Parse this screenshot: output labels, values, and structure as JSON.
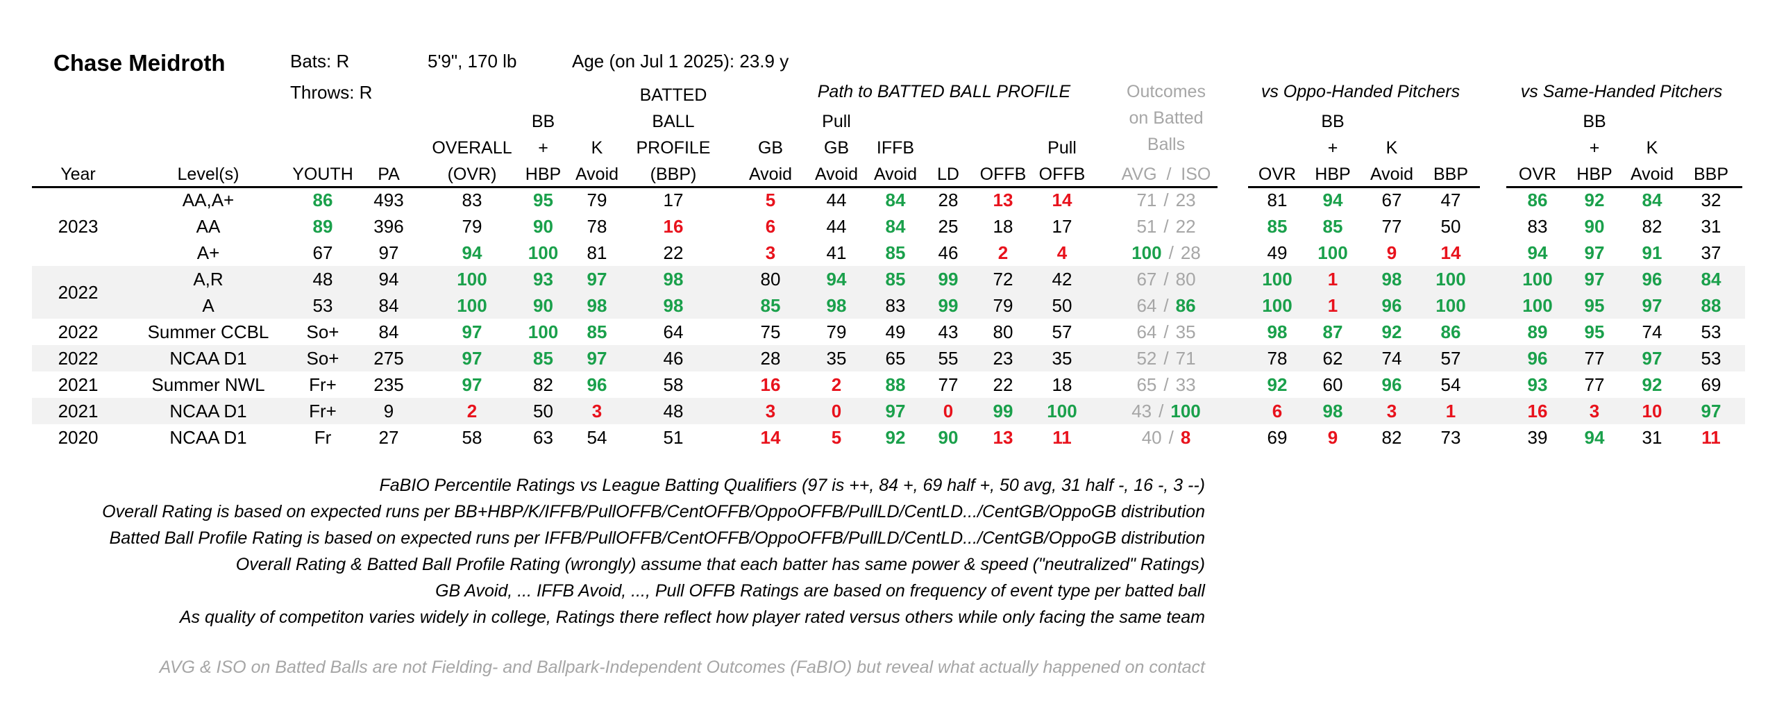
{
  "player": {
    "name": "Chase Meidroth",
    "bats": "Bats: R",
    "throws": "Throws: R",
    "size": "5'9\", 170 lb",
    "age": "Age (on Jul 1 2025): 23.9 y"
  },
  "group_headers": {
    "path": "Path to BATTED BALL PROFILE",
    "outcomes": [
      "Outcomes",
      "on Batted",
      "Balls"
    ],
    "oppo": "vs Oppo-Handed Pitchers",
    "same": "vs Same-Handed Pitchers"
  },
  "col_headers": {
    "year": "Year",
    "level": "Level(s)",
    "youth": "YOUTH",
    "pa": "PA",
    "ovr": [
      "OVERALL",
      "(OVR)"
    ],
    "bbhbp": [
      "BB",
      "+",
      "HBP"
    ],
    "kavoid": [
      "K",
      "Avoid"
    ],
    "bbp": [
      "BATTED",
      "BALL",
      "PROFILE",
      "(BBP)"
    ],
    "gbavoid": [
      "GB",
      "Avoid"
    ],
    "pullgb": [
      "Pull",
      "GB",
      "Avoid"
    ],
    "iffb": [
      "IFFB",
      "Avoid"
    ],
    "ld": "LD",
    "offb": "OFFB",
    "pulloffb": [
      "Pull",
      "OFFB"
    ],
    "avgiso": "AVG  /  ISO",
    "split_ovr": "OVR",
    "split_bb": [
      "BB",
      "+",
      "HBP"
    ],
    "split_k": [
      "K",
      "Avoid"
    ],
    "split_bbp": "BBP"
  },
  "rows": [
    {
      "year": "",
      "level": "AA,A+",
      "youth": "86",
      "pa": "493",
      "ovr": "83",
      "bb": "95",
      "k": "79",
      "bbp": "17",
      "gb": "5",
      "pgb": "44",
      "iffb": "84",
      "ld": "28",
      "offb": "13",
      "poffb": "14",
      "avg": "71",
      "iso": "23",
      "o_ovr": "81",
      "o_bb": "94",
      "o_k": "67",
      "o_bbp": "47",
      "s_ovr": "86",
      "s_bb": "92",
      "s_k": "84",
      "s_bbp": "32"
    },
    {
      "year": "2023",
      "level": "AA",
      "youth": "89",
      "pa": "396",
      "ovr": "79",
      "bb": "90",
      "k": "78",
      "bbp": "16",
      "gb": "6",
      "pgb": "44",
      "iffb": "84",
      "ld": "25",
      "offb": "18",
      "poffb": "17",
      "avg": "51",
      "iso": "22",
      "o_ovr": "85",
      "o_bb": "85",
      "o_k": "77",
      "o_bbp": "50",
      "s_ovr": "83",
      "s_bb": "90",
      "s_k": "82",
      "s_bbp": "31"
    },
    {
      "year": "",
      "level": "A+",
      "youth": "67",
      "pa": "97",
      "ovr": "94",
      "bb": "100",
      "k": "81",
      "bbp": "22",
      "gb": "3",
      "pgb": "41",
      "iffb": "85",
      "ld": "46",
      "offb": "2",
      "poffb": "4",
      "avg": "100",
      "iso": "28",
      "o_ovr": "49",
      "o_bb": "100",
      "o_k": "9",
      "o_bbp": "14",
      "s_ovr": "94",
      "s_bb": "97",
      "s_k": "91",
      "s_bbp": "37"
    },
    {
      "year": "",
      "level": "A,R",
      "youth": "48",
      "pa": "94",
      "ovr": "100",
      "bb": "93",
      "k": "97",
      "bbp": "98",
      "gb": "80",
      "pgb": "94",
      "iffb": "85",
      "ld": "99",
      "offb": "72",
      "poffb": "42",
      "avg": "67",
      "iso": "80",
      "o_ovr": "100",
      "o_bb": "1",
      "o_k": "98",
      "o_bbp": "100",
      "s_ovr": "100",
      "s_bb": "97",
      "s_k": "96",
      "s_bbp": "84"
    },
    {
      "year": "2022",
      "level": "A",
      "youth": "53",
      "pa": "84",
      "ovr": "100",
      "bb": "90",
      "k": "98",
      "bbp": "98",
      "gb": "85",
      "pgb": "98",
      "iffb": "83",
      "ld": "99",
      "offb": "79",
      "poffb": "50",
      "avg": "64",
      "iso": "86",
      "o_ovr": "100",
      "o_bb": "1",
      "o_k": "96",
      "o_bbp": "100",
      "s_ovr": "100",
      "s_bb": "95",
      "s_k": "97",
      "s_bbp": "88"
    },
    {
      "year": "2022",
      "level": "Summer CCBL",
      "youth": "So+",
      "pa": "84",
      "ovr": "97",
      "bb": "100",
      "k": "85",
      "bbp": "64",
      "gb": "75",
      "pgb": "79",
      "iffb": "49",
      "ld": "43",
      "offb": "80",
      "poffb": "57",
      "avg": "64",
      "iso": "35",
      "o_ovr": "98",
      "o_bb": "87",
      "o_k": "92",
      "o_bbp": "86",
      "s_ovr": "89",
      "s_bb": "95",
      "s_k": "74",
      "s_bbp": "53"
    },
    {
      "year": "2022",
      "level": "NCAA D1",
      "youth": "So+",
      "pa": "275",
      "ovr": "97",
      "bb": "85",
      "k": "97",
      "bbp": "46",
      "gb": "28",
      "pgb": "35",
      "iffb": "65",
      "ld": "55",
      "offb": "23",
      "poffb": "35",
      "avg": "52",
      "iso": "71",
      "o_ovr": "78",
      "o_bb": "62",
      "o_k": "74",
      "o_bbp": "57",
      "s_ovr": "96",
      "s_bb": "77",
      "s_k": "97",
      "s_bbp": "53"
    },
    {
      "year": "2021",
      "level": "Summer NWL",
      "youth": "Fr+",
      "pa": "235",
      "ovr": "97",
      "bb": "82",
      "k": "96",
      "bbp": "58",
      "gb": "16",
      "pgb": "2",
      "iffb": "88",
      "ld": "77",
      "offb": "22",
      "poffb": "18",
      "avg": "65",
      "iso": "33",
      "o_ovr": "92",
      "o_bb": "60",
      "o_k": "96",
      "o_bbp": "54",
      "s_ovr": "93",
      "s_bb": "77",
      "s_k": "92",
      "s_bbp": "69"
    },
    {
      "year": "2021",
      "level": "NCAA D1",
      "youth": "Fr+",
      "pa": "9",
      "ovr": "2",
      "bb": "50",
      "k": "3",
      "bbp": "48",
      "gb": "3",
      "pgb": "0",
      "iffb": "97",
      "ld": "0",
      "offb": "99",
      "poffb": "100",
      "avg": "43",
      "iso": "100",
      "o_ovr": "6",
      "o_bb": "98",
      "o_k": "3",
      "o_bbp": "1",
      "s_ovr": "16",
      "s_bb": "3",
      "s_k": "10",
      "s_bbp": "97"
    },
    {
      "year": "2020",
      "level": "NCAA D1",
      "youth": "Fr",
      "pa": "27",
      "ovr": "58",
      "bb": "63",
      "k": "54",
      "bbp": "51",
      "gb": "14",
      "pgb": "5",
      "iffb": "92",
      "ld": "90",
      "offb": "13",
      "poffb": "11",
      "avg": "40",
      "iso": "8",
      "o_ovr": "69",
      "o_bb": "9",
      "o_k": "82",
      "o_bbp": "73",
      "s_ovr": "39",
      "s_bb": "94",
      "s_k": "31",
      "s_bbp": "11"
    }
  ],
  "colors": {
    "good": "#1aa04b",
    "bad": "#e8121c",
    "muted": "#a6a6a6",
    "band": "#f2f2f2"
  },
  "notes": [
    "FaBIO Percentile Ratings vs League Batting Qualifiers (97 is ++, 84 +, 69 half +, 50 avg, 31 half -, 16 -, 3 --)",
    "Overall Rating is based on expected runs per BB+HBP/K/IFFB/PullOFFB/CentOFFB/OppoOFFB/PullLD/CentLD.../CentGB/OppoGB distribution",
    "Batted Ball Profile Rating is based on expected runs per IFFB/PullOFFB/CentOFFB/OppoOFFB/PullLD/CentLD.../CentGB/OppoGB distribution",
    "Overall Rating & Batted Ball Profile Rating (wrongly) assume that each batter has same power & speed (\"neutralized\" Ratings)",
    "GB Avoid, ... IFFB Avoid, ..., Pull OFFB Ratings are based on frequency of event type per batted ball",
    "As quality of competiton varies widely in college, Ratings there reflect how player rated versus others while only facing the same team"
  ],
  "footnote": "AVG & ISO on Batted Balls are not Fielding- and Ballpark-Independent Outcomes (FaBIO) but reveal what actually happened on contact"
}
